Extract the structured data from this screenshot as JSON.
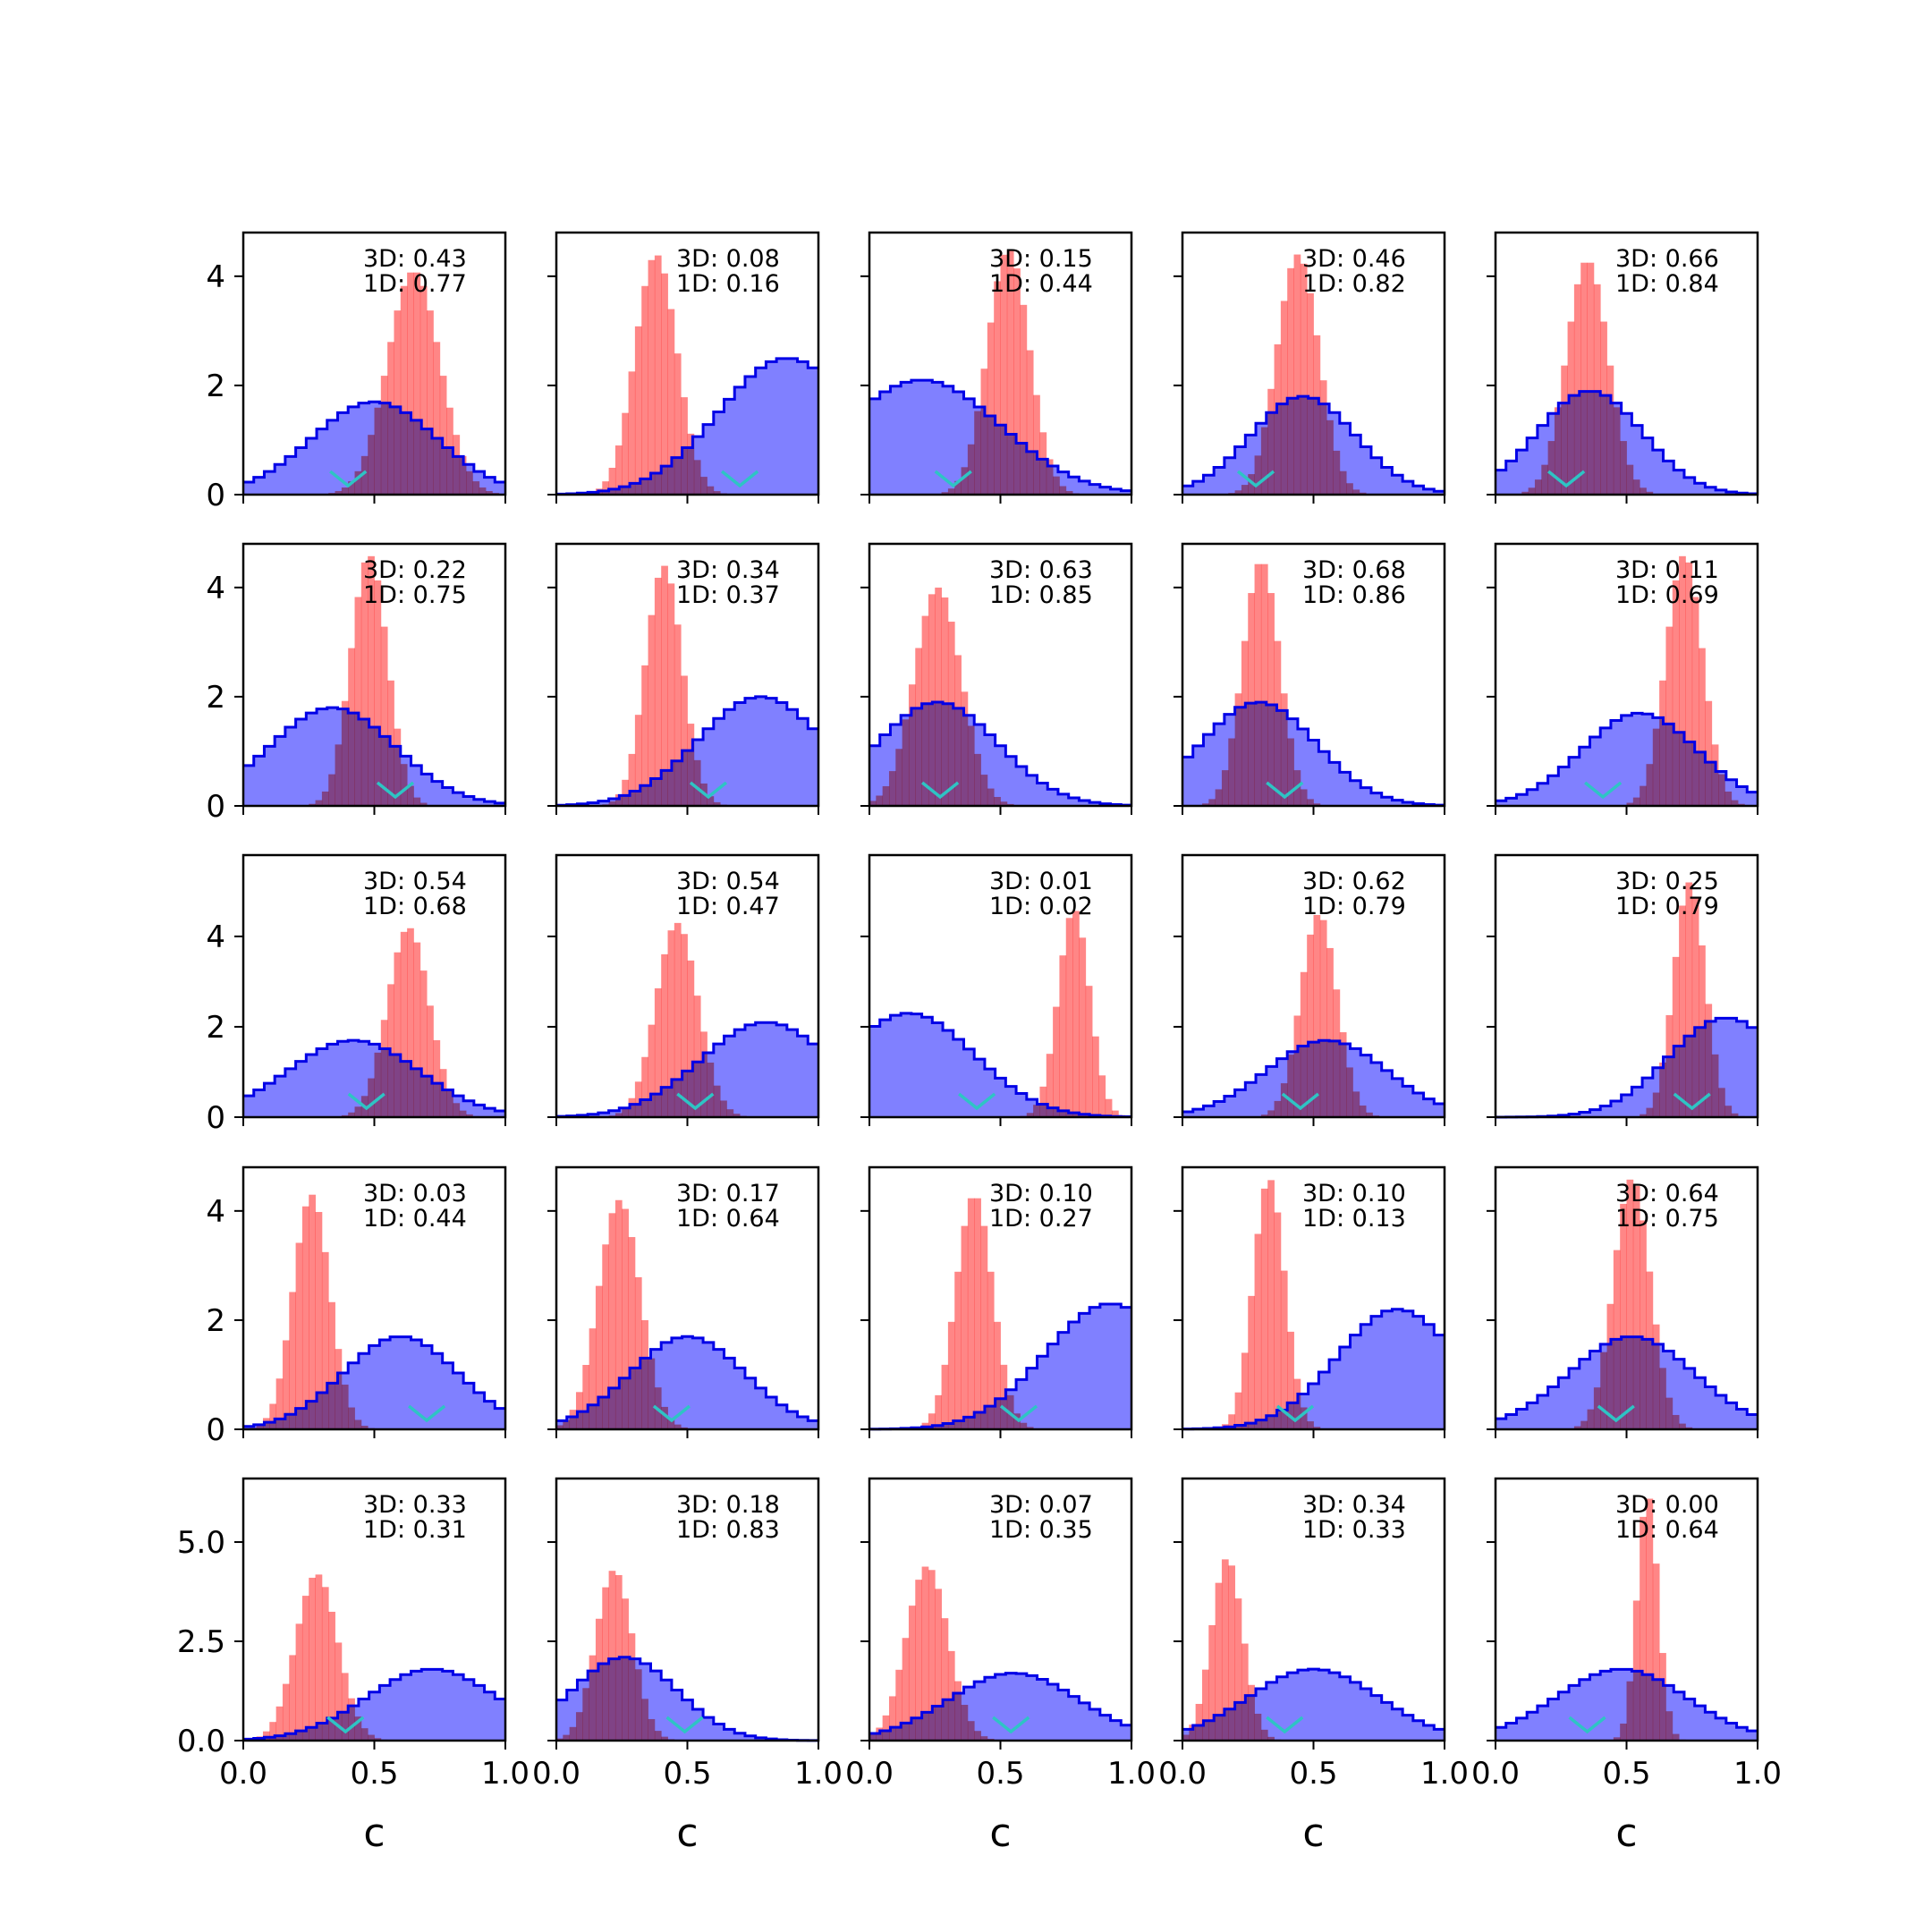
{
  "chart_data": {
    "type": "histogram-grid",
    "rows": 5,
    "cols": 5,
    "xlim": [
      0,
      1
    ],
    "xticks": [
      "0.0",
      "0.5",
      "1.0"
    ],
    "xlabel": "c",
    "ylims": [
      [
        0,
        4.8
      ],
      [
        0,
        4.8
      ],
      [
        0,
        5.8
      ],
      [
        0,
        4.8
      ],
      [
        0,
        6.6
      ]
    ],
    "yticks": [
      [
        "0",
        "2",
        "4"
      ],
      [
        "0",
        "2",
        "4"
      ],
      [
        "0",
        "2",
        "4"
      ],
      [
        "0",
        "2",
        "4"
      ],
      [
        "0.0",
        "2.5",
        "5.0"
      ]
    ],
    "ytick_values": [
      [
        0,
        2,
        4
      ],
      [
        0,
        2,
        4
      ],
      [
        0,
        2,
        4
      ],
      [
        0,
        2,
        4
      ],
      [
        0,
        2.5,
        5
      ]
    ],
    "colors": {
      "blue_fill": "#8080ff",
      "blue_line": "#0000e6",
      "red_fill": "#ff8080",
      "marker": "#2ec4c4"
    },
    "panels": [
      {
        "label3d": "3D: 0.43",
        "label1d": "1D: 0.77",
        "blue": {
          "mu": 0.5,
          "sigma": 0.24,
          "peak": 1.7
        },
        "red": {
          "mu": 0.65,
          "sigma": 0.1,
          "peak": 4.1
        },
        "marker": 0.4
      },
      {
        "label3d": "3D: 0.08",
        "label1d": "1D: 0.16",
        "blue": {
          "mu": 0.88,
          "sigma": 0.26,
          "peak": 2.5
        },
        "red": {
          "mu": 0.38,
          "sigma": 0.08,
          "peak": 4.4
        },
        "marker": 0.7
      },
      {
        "label3d": "3D: 0.15",
        "label1d": "1D: 0.44",
        "blue": {
          "mu": 0.2,
          "sigma": 0.3,
          "peak": 2.1
        },
        "red": {
          "mu": 0.53,
          "sigma": 0.08,
          "peak": 4.5
        },
        "marker": 0.32
      },
      {
        "label3d": "3D: 0.46",
        "label1d": "1D: 0.82",
        "blue": {
          "mu": 0.46,
          "sigma": 0.2,
          "peak": 1.8
        },
        "red": {
          "mu": 0.44,
          "sigma": 0.08,
          "peak": 4.4
        },
        "marker": 0.28
      },
      {
        "label3d": "3D: 0.66",
        "label1d": "1D: 0.84",
        "blue": {
          "mu": 0.36,
          "sigma": 0.2,
          "peak": 1.9
        },
        "red": {
          "mu": 0.35,
          "sigma": 0.08,
          "peak": 4.3
        },
        "marker": 0.27
      },
      {
        "label3d": "3D: 0.22",
        "label1d": "1D: 0.75",
        "blue": {
          "mu": 0.34,
          "sigma": 0.24,
          "peak": 1.8
        },
        "red": {
          "mu": 0.48,
          "sigma": 0.07,
          "peak": 4.6
        },
        "marker": 0.58
      },
      {
        "label3d": "3D: 0.34",
        "label1d": "1D: 0.37",
        "blue": {
          "mu": 0.78,
          "sigma": 0.24,
          "peak": 2.0
        },
        "red": {
          "mu": 0.41,
          "sigma": 0.07,
          "peak": 4.4
        },
        "marker": 0.58
      },
      {
        "label3d": "3D: 0.63",
        "label1d": "1D: 0.85",
        "blue": {
          "mu": 0.26,
          "sigma": 0.23,
          "peak": 1.9
        },
        "red": {
          "mu": 0.26,
          "sigma": 0.09,
          "peak": 4.0
        },
        "marker": 0.27
      },
      {
        "label3d": "3D: 0.68",
        "label1d": "1D: 0.86",
        "blue": {
          "mu": 0.29,
          "sigma": 0.22,
          "peak": 1.9
        },
        "red": {
          "mu": 0.3,
          "sigma": 0.07,
          "peak": 4.5
        },
        "marker": 0.39
      },
      {
        "label3d": "3D: 0.11",
        "label1d": "1D: 0.69",
        "blue": {
          "mu": 0.55,
          "sigma": 0.22,
          "peak": 1.7
        },
        "red": {
          "mu": 0.72,
          "sigma": 0.07,
          "peak": 4.6
        },
        "marker": 0.41
      },
      {
        "label3d": "3D: 0.54",
        "label1d": "1D: 0.68",
        "blue": {
          "mu": 0.42,
          "sigma": 0.25,
          "peak": 1.7
        },
        "red": {
          "mu": 0.63,
          "sigma": 0.08,
          "peak": 4.2
        },
        "marker": 0.47
      },
      {
        "label3d": "3D: 0.54",
        "label1d": "1D: 0.47",
        "blue": {
          "mu": 0.8,
          "sigma": 0.25,
          "peak": 2.1
        },
        "red": {
          "mu": 0.46,
          "sigma": 0.08,
          "peak": 4.3
        },
        "marker": 0.53
      },
      {
        "label3d": "3D: 0.01",
        "label1d": "1D: 0.02",
        "blue": {
          "mu": 0.15,
          "sigma": 0.25,
          "peak": 2.3
        },
        "red": {
          "mu": 0.78,
          "sigma": 0.06,
          "peak": 4.6
        },
        "marker": 0.41
      },
      {
        "label3d": "3D: 0.62",
        "label1d": "1D: 0.79",
        "blue": {
          "mu": 0.55,
          "sigma": 0.23,
          "peak": 1.7
        },
        "red": {
          "mu": 0.52,
          "sigma": 0.07,
          "peak": 4.5
        },
        "marker": 0.45
      },
      {
        "label3d": "3D: 0.25",
        "label1d": "1D: 0.79",
        "blue": {
          "mu": 0.88,
          "sigma": 0.22,
          "peak": 2.2
        },
        "red": {
          "mu": 0.74,
          "sigma": 0.06,
          "peak": 5.2
        },
        "marker": 0.75
      },
      {
        "label3d": "3D: 0.03",
        "label1d": "1D: 0.44",
        "blue": {
          "mu": 0.6,
          "sigma": 0.22,
          "peak": 1.7
        },
        "red": {
          "mu": 0.26,
          "sigma": 0.07,
          "peak": 4.3
        },
        "marker": 0.7
      },
      {
        "label3d": "3D: 0.17",
        "label1d": "1D: 0.64",
        "blue": {
          "mu": 0.5,
          "sigma": 0.22,
          "peak": 1.7
        },
        "red": {
          "mu": 0.24,
          "sigma": 0.08,
          "peak": 4.2
        },
        "marker": 0.44
      },
      {
        "label3d": "3D: 0.10",
        "label1d": "1D: 0.27",
        "blue": {
          "mu": 0.92,
          "sigma": 0.25,
          "peak": 2.3
        },
        "red": {
          "mu": 0.4,
          "sigma": 0.07,
          "peak": 4.3
        },
        "marker": 0.57
      },
      {
        "label3d": "3D: 0.10",
        "label1d": "1D: 0.13",
        "blue": {
          "mu": 0.82,
          "sigma": 0.23,
          "peak": 2.2
        },
        "red": {
          "mu": 0.33,
          "sigma": 0.06,
          "peak": 4.6
        },
        "marker": 0.43
      },
      {
        "label3d": "3D: 0.64",
        "label1d": "1D: 0.75",
        "blue": {
          "mu": 0.52,
          "sigma": 0.24,
          "peak": 1.7
        },
        "red": {
          "mu": 0.52,
          "sigma": 0.07,
          "peak": 4.6
        },
        "marker": 0.46
      },
      {
        "label3d": "3D: 0.33",
        "label1d": "1D: 0.31",
        "blue": {
          "mu": 0.72,
          "sigma": 0.25,
          "peak": 1.8
        },
        "red": {
          "mu": 0.28,
          "sigma": 0.08,
          "peak": 4.2
        },
        "marker": 0.39
      },
      {
        "label3d": "3D: 0.18",
        "label1d": "1D: 0.83",
        "blue": {
          "mu": 0.26,
          "sigma": 0.2,
          "peak": 2.1
        },
        "red": {
          "mu": 0.22,
          "sigma": 0.07,
          "peak": 4.3
        },
        "marker": 0.49
      },
      {
        "label3d": "3D: 0.07",
        "label1d": "1D: 0.35",
        "blue": {
          "mu": 0.55,
          "sigma": 0.25,
          "peak": 1.7
        },
        "red": {
          "mu": 0.22,
          "sigma": 0.08,
          "peak": 4.4
        },
        "marker": 0.54
      },
      {
        "label3d": "3D: 0.34",
        "label1d": "1D: 0.33",
        "blue": {
          "mu": 0.5,
          "sigma": 0.25,
          "peak": 1.8
        },
        "red": {
          "mu": 0.17,
          "sigma": 0.06,
          "peak": 4.6
        },
        "marker": 0.39
      },
      {
        "label3d": "3D: 0.00",
        "label1d": "1D: 0.64",
        "blue": {
          "mu": 0.48,
          "sigma": 0.25,
          "peak": 1.8
        },
        "red": {
          "mu": 0.58,
          "sigma": 0.04,
          "peak": 6.2
        },
        "marker": 0.35
      }
    ]
  }
}
